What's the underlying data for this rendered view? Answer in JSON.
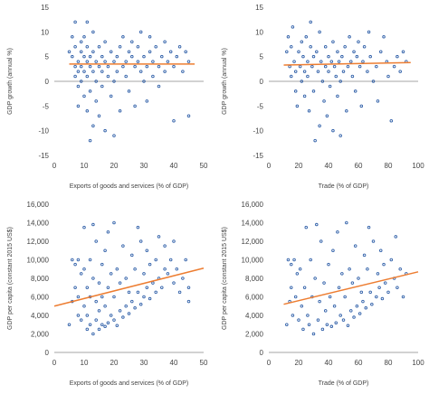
{
  "colors": {
    "marker": "#2f5fa8",
    "trend": "#ed7d31",
    "zero_line": "#a6a6a6",
    "text": "#444444"
  },
  "chart_data": [
    {
      "type": "scatter",
      "title": "",
      "xlabel": "Exports of goods and services (% of GDP)",
      "ylabel": "GDP growth (annual %)",
      "xlim": [
        0,
        50
      ],
      "ylim": [
        -15,
        15
      ],
      "xticks": [
        0,
        10,
        20,
        30,
        40,
        50
      ],
      "yticks": [
        15,
        10,
        5,
        0,
        -5,
        -10,
        -15
      ],
      "grid": false,
      "trendline": {
        "x": [
          5,
          47
        ],
        "y": [
          3.5,
          3.5
        ]
      },
      "points": [
        [
          5,
          6
        ],
        [
          6,
          9
        ],
        [
          6,
          5
        ],
        [
          7,
          3
        ],
        [
          7,
          1
        ],
        [
          7,
          7
        ],
        [
          7,
          12
        ],
        [
          8,
          4
        ],
        [
          8,
          2
        ],
        [
          8,
          -1
        ],
        [
          8,
          -5
        ],
        [
          9,
          6
        ],
        [
          9,
          3
        ],
        [
          9,
          8
        ],
        [
          9,
          0
        ],
        [
          10,
          5
        ],
        [
          10,
          2
        ],
        [
          10,
          -3
        ],
        [
          10,
          9
        ],
        [
          11,
          4
        ],
        [
          11,
          1
        ],
        [
          11,
          -6
        ],
        [
          11,
          7
        ],
        [
          11,
          12
        ],
        [
          12,
          3
        ],
        [
          12,
          5
        ],
        [
          12,
          -2
        ],
        [
          12,
          -12
        ],
        [
          13,
          6
        ],
        [
          13,
          2
        ],
        [
          13,
          -9
        ],
        [
          13,
          10
        ],
        [
          14,
          4
        ],
        [
          14,
          0
        ],
        [
          14,
          -4
        ],
        [
          15,
          3
        ],
        [
          15,
          7
        ],
        [
          15,
          -7
        ],
        [
          16,
          5
        ],
        [
          16,
          2
        ],
        [
          16,
          -1
        ],
        [
          17,
          4
        ],
        [
          17,
          8
        ],
        [
          17,
          -10
        ],
        [
          18,
          3
        ],
        [
          18,
          1
        ],
        [
          19,
          6
        ],
        [
          19,
          -3
        ],
        [
          20,
          4
        ],
        [
          20,
          0
        ],
        [
          20,
          -11
        ],
        [
          21,
          5
        ],
        [
          21,
          2
        ],
        [
          22,
          7
        ],
        [
          22,
          -6
        ],
        [
          23,
          3
        ],
        [
          23,
          9
        ],
        [
          24,
          4
        ],
        [
          24,
          1
        ],
        [
          25,
          6
        ],
        [
          25,
          -2
        ],
        [
          26,
          5
        ],
        [
          26,
          8
        ],
        [
          27,
          3
        ],
        [
          27,
          -5
        ],
        [
          28,
          4
        ],
        [
          28,
          7
        ],
        [
          29,
          2
        ],
        [
          29,
          10
        ],
        [
          30,
          5
        ],
        [
          30,
          0
        ],
        [
          31,
          3
        ],
        [
          31,
          -4
        ],
        [
          32,
          6
        ],
        [
          32,
          9
        ],
        [
          33,
          4
        ],
        [
          33,
          1
        ],
        [
          34,
          7
        ],
        [
          35,
          3
        ],
        [
          35,
          -1
        ],
        [
          36,
          5
        ],
        [
          37,
          2
        ],
        [
          37,
          8
        ],
        [
          38,
          4
        ],
        [
          39,
          6
        ],
        [
          40,
          3
        ],
        [
          40,
          -8
        ],
        [
          41,
          5
        ],
        [
          42,
          7
        ],
        [
          43,
          2
        ],
        [
          44,
          6
        ],
        [
          45,
          -7
        ],
        [
          45,
          4
        ]
      ]
    },
    {
      "type": "scatter",
      "title": "",
      "xlabel": "Trade (% of GDP)",
      "ylabel": "GDP growth (annual %)",
      "xlim": [
        0,
        100
      ],
      "ylim": [
        -15,
        15
      ],
      "xticks": [
        0,
        20,
        40,
        60,
        80,
        100
      ],
      "yticks": [
        15,
        10,
        5,
        0,
        -5,
        -10,
        -15
      ],
      "grid": false,
      "trendline": {
        "x": [
          10,
          95
        ],
        "y": [
          3.3,
          3.8
        ]
      },
      "points": [
        [
          12,
          6
        ],
        [
          13,
          9
        ],
        [
          14,
          3
        ],
        [
          15,
          1
        ],
        [
          15,
          7
        ],
        [
          16,
          11
        ],
        [
          17,
          4
        ],
        [
          18,
          2
        ],
        [
          18,
          -2
        ],
        [
          19,
          -5
        ],
        [
          20,
          6
        ],
        [
          21,
          3
        ],
        [
          22,
          8
        ],
        [
          22,
          0
        ],
        [
          23,
          5
        ],
        [
          24,
          2
        ],
        [
          24,
          -3
        ],
        [
          25,
          9
        ],
        [
          26,
          4
        ],
        [
          26,
          1
        ],
        [
          27,
          -6
        ],
        [
          28,
          7
        ],
        [
          28,
          12
        ],
        [
          29,
          3
        ],
        [
          30,
          5
        ],
        [
          30,
          -2
        ],
        [
          31,
          -12
        ],
        [
          32,
          6
        ],
        [
          33,
          2
        ],
        [
          34,
          -9
        ],
        [
          34,
          10
        ],
        [
          35,
          4
        ],
        [
          36,
          0
        ],
        [
          37,
          -4
        ],
        [
          38,
          3
        ],
        [
          38,
          7
        ],
        [
          39,
          -7
        ],
        [
          40,
          5
        ],
        [
          40,
          2
        ],
        [
          41,
          -1
        ],
        [
          42,
          4
        ],
        [
          43,
          8
        ],
        [
          43,
          -10
        ],
        [
          44,
          3
        ],
        [
          45,
          1
        ],
        [
          46,
          6
        ],
        [
          46,
          -3
        ],
        [
          47,
          4
        ],
        [
          48,
          0
        ],
        [
          48,
          -11
        ],
        [
          49,
          5
        ],
        [
          50,
          2
        ],
        [
          51,
          7
        ],
        [
          52,
          -6
        ],
        [
          53,
          3
        ],
        [
          54,
          9
        ],
        [
          55,
          4
        ],
        [
          56,
          1
        ],
        [
          57,
          6
        ],
        [
          58,
          -2
        ],
        [
          59,
          5
        ],
        [
          60,
          8
        ],
        [
          61,
          3
        ],
        [
          62,
          -5
        ],
        [
          63,
          4
        ],
        [
          64,
          7
        ],
        [
          66,
          2
        ],
        [
          67,
          10
        ],
        [
          68,
          5
        ],
        [
          70,
          0
        ],
        [
          72,
          3
        ],
        [
          73,
          -4
        ],
        [
          75,
          6
        ],
        [
          77,
          9
        ],
        [
          79,
          4
        ],
        [
          80,
          1
        ],
        [
          82,
          -8
        ],
        [
          84,
          3
        ],
        [
          86,
          5
        ],
        [
          88,
          2
        ],
        [
          90,
          6
        ],
        [
          92,
          4
        ]
      ]
    },
    {
      "type": "scatter",
      "title": "",
      "xlabel": "Exports of goods and services (% of GDP)",
      "ylabel": "GDP per capita (constant 2015 US$)",
      "xlim": [
        0,
        50
      ],
      "ylim": [
        0,
        16000
      ],
      "xticks": [
        0,
        10,
        20,
        30,
        40,
        50
      ],
      "yticks": [
        16000,
        14000,
        12000,
        10000,
        8000,
        6000,
        4000,
        2000,
        0
      ],
      "ytick_labels": [
        "16,000",
        "14,000",
        "12,000",
        "10,000",
        "8,000",
        "6,000",
        "4,000",
        "2,000",
        "0"
      ],
      "grid": false,
      "trendline": {
        "x": [
          0,
          50
        ],
        "y": [
          5000,
          9100
        ]
      },
      "points": [
        [
          5,
          3000
        ],
        [
          6,
          10000
        ],
        [
          6,
          5500
        ],
        [
          7,
          9500
        ],
        [
          7,
          7000
        ],
        [
          8,
          4000
        ],
        [
          8,
          10000
        ],
        [
          8,
          6000
        ],
        [
          9,
          8500
        ],
        [
          9,
          3500
        ],
        [
          10,
          9000
        ],
        [
          10,
          5000
        ],
        [
          10,
          13500
        ],
        [
          11,
          2500
        ],
        [
          11,
          7000
        ],
        [
          11,
          4000
        ],
        [
          12,
          3000
        ],
        [
          12,
          10000
        ],
        [
          12,
          6000
        ],
        [
          13,
          2000
        ],
        [
          13,
          8000
        ],
        [
          13,
          13800
        ],
        [
          14,
          3500
        ],
        [
          14,
          5500
        ],
        [
          14,
          12000
        ],
        [
          15,
          2500
        ],
        [
          15,
          7500
        ],
        [
          15,
          4500
        ],
        [
          16,
          3000
        ],
        [
          16,
          9500
        ],
        [
          16,
          6000
        ],
        [
          17,
          2800
        ],
        [
          17,
          11000
        ],
        [
          17,
          5000
        ],
        [
          18,
          3200
        ],
        [
          18,
          13000
        ],
        [
          18,
          7000
        ],
        [
          19,
          4000
        ],
        [
          19,
          8500
        ],
        [
          20,
          3500
        ],
        [
          20,
          6000
        ],
        [
          20,
          14000
        ],
        [
          21,
          2900
        ],
        [
          21,
          9000
        ],
        [
          22,
          4500
        ],
        [
          22,
          7500
        ],
        [
          23,
          3800
        ],
        [
          23,
          11500
        ],
        [
          24,
          5000
        ],
        [
          24,
          8000
        ],
        [
          25,
          4200
        ],
        [
          25,
          6500
        ],
        [
          26,
          5500
        ],
        [
          26,
          10500
        ],
        [
          27,
          4800
        ],
        [
          27,
          9000
        ],
        [
          28,
          13500
        ],
        [
          28,
          6500
        ],
        [
          29,
          5200
        ],
        [
          29,
          12000
        ],
        [
          30,
          6000
        ],
        [
          30,
          8500
        ],
        [
          31,
          7000
        ],
        [
          31,
          11000
        ],
        [
          32,
          5800
        ],
        [
          32,
          9500
        ],
        [
          33,
          7500
        ],
        [
          34,
          6500
        ],
        [
          34,
          10000
        ],
        [
          35,
          8000
        ],
        [
          35,
          12500
        ],
        [
          36,
          7000
        ],
        [
          37,
          9000
        ],
        [
          37,
          11500
        ],
        [
          38,
          8500
        ],
        [
          39,
          10000
        ],
        [
          40,
          7500
        ],
        [
          40,
          12000
        ],
        [
          41,
          9000
        ],
        [
          42,
          6500
        ],
        [
          43,
          8000
        ],
        [
          44,
          10000
        ],
        [
          45,
          5500
        ],
        [
          45,
          7000
        ]
      ]
    },
    {
      "type": "scatter",
      "title": "",
      "xlabel": "Trade (% of GDP)",
      "ylabel": "GDP per capita (constant 2015 US$)",
      "xlim": [
        0,
        100
      ],
      "ylim": [
        0,
        16000
      ],
      "xticks": [
        0,
        20,
        40,
        60,
        80,
        100
      ],
      "yticks": [
        16000,
        14000,
        12000,
        10000,
        8000,
        6000,
        4000,
        2000,
        0
      ],
      "ytick_labels": [
        "16,000",
        "14,000",
        "12,000",
        "10,000",
        "8,000",
        "6,000",
        "4,000",
        "2,000",
        "0"
      ],
      "grid": false,
      "trendline": {
        "x": [
          10,
          100
        ],
        "y": [
          5200,
          8700
        ]
      },
      "points": [
        [
          12,
          3000
        ],
        [
          13,
          10000
        ],
        [
          14,
          5500
        ],
        [
          15,
          9500
        ],
        [
          15,
          7000
        ],
        [
          16,
          4000
        ],
        [
          17,
          10000
        ],
        [
          18,
          6000
        ],
        [
          19,
          8500
        ],
        [
          20,
          3500
        ],
        [
          21,
          9000
        ],
        [
          22,
          5000
        ],
        [
          23,
          2500
        ],
        [
          24,
          7000
        ],
        [
          25,
          13500
        ],
        [
          26,
          4000
        ],
        [
          27,
          3000
        ],
        [
          28,
          10000
        ],
        [
          29,
          6000
        ],
        [
          30,
          2000
        ],
        [
          31,
          8000
        ],
        [
          32,
          13800
        ],
        [
          33,
          3500
        ],
        [
          34,
          5500
        ],
        [
          35,
          12000
        ],
        [
          36,
          2500
        ],
        [
          37,
          7500
        ],
        [
          38,
          4500
        ],
        [
          39,
          3000
        ],
        [
          40,
          9500
        ],
        [
          41,
          6000
        ],
        [
          42,
          2800
        ],
        [
          43,
          11000
        ],
        [
          44,
          5000
        ],
        [
          45,
          3200
        ],
        [
          46,
          13000
        ],
        [
          47,
          7000
        ],
        [
          48,
          4000
        ],
        [
          49,
          8500
        ],
        [
          50,
          3500
        ],
        [
          51,
          6000
        ],
        [
          52,
          14000
        ],
        [
          53,
          2900
        ],
        [
          54,
          9000
        ],
        [
          55,
          4500
        ],
        [
          56,
          7500
        ],
        [
          57,
          3800
        ],
        [
          58,
          11500
        ],
        [
          59,
          5000
        ],
        [
          60,
          8000
        ],
        [
          61,
          4200
        ],
        [
          62,
          6500
        ],
        [
          63,
          5500
        ],
        [
          64,
          10500
        ],
        [
          65,
          4800
        ],
        [
          66,
          9000
        ],
        [
          67,
          13500
        ],
        [
          68,
          6500
        ],
        [
          69,
          5200
        ],
        [
          70,
          12000
        ],
        [
          72,
          6000
        ],
        [
          73,
          8500
        ],
        [
          74,
          7000
        ],
        [
          75,
          11000
        ],
        [
          76,
          5800
        ],
        [
          77,
          9500
        ],
        [
          78,
          7500
        ],
        [
          80,
          6500
        ],
        [
          82,
          10000
        ],
        [
          84,
          8000
        ],
        [
          85,
          12500
        ],
        [
          86,
          7000
        ],
        [
          88,
          9000
        ],
        [
          90,
          6000
        ],
        [
          92,
          8500
        ]
      ]
    }
  ]
}
